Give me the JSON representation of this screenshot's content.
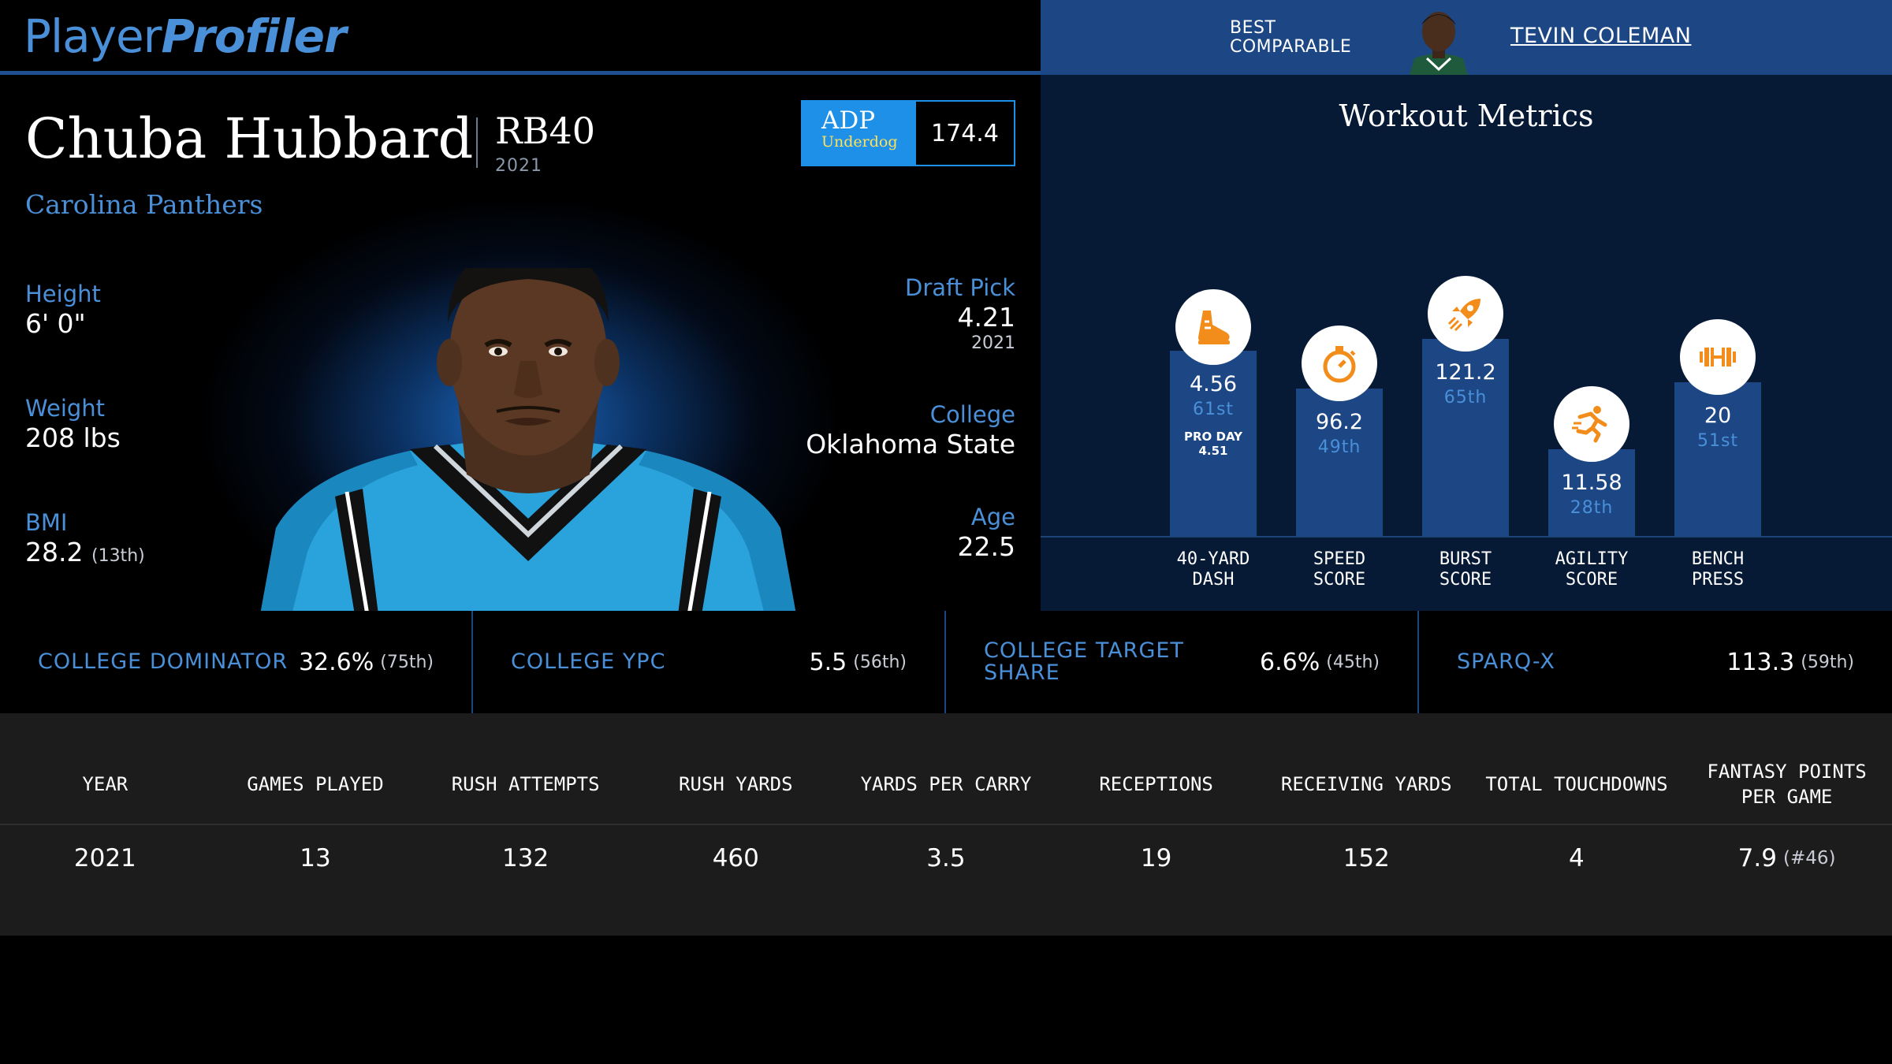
{
  "header": {
    "logo_part1": "Player",
    "logo_part2": "Profiler",
    "best_comparable_label": "BEST\nCOMPARABLE",
    "best_comparable_name": "TEVIN COLEMAN"
  },
  "player": {
    "name": "Chuba Hubbard",
    "position": "RB40",
    "year": "2021",
    "team": "Carolina Panthers",
    "adp": {
      "label": "ADP",
      "source": "Underdog",
      "value": "174.4"
    },
    "height": {
      "label": "Height",
      "value": "6' 0\""
    },
    "weight": {
      "label": "Weight",
      "value": "208 lbs"
    },
    "bmi": {
      "label": "BMI",
      "value": "28.2",
      "rank": "(13th)"
    },
    "draft_pick": {
      "label": "Draft Pick",
      "value": "4.21",
      "year": "2021"
    },
    "college": {
      "label": "College",
      "value": "Oklahoma State"
    },
    "age": {
      "label": "Age",
      "value": "22.5"
    }
  },
  "workout": {
    "title": "Workout Metrics",
    "metrics": [
      {
        "label_line1": "40-YARD",
        "label_line2": "DASH",
        "value": "4.56",
        "rank": "61st",
        "note_line1": "PRO DAY",
        "note_line2": "4.51",
        "icon": "running-shoe-icon",
        "percentile": 61
      },
      {
        "label_line1": "SPEED",
        "label_line2": "SCORE",
        "value": "96.2",
        "rank": "49th",
        "icon": "stopwatch-icon",
        "percentile": 49
      },
      {
        "label_line1": "BURST",
        "label_line2": "SCORE",
        "value": "121.2",
        "rank": "65th",
        "icon": "rocket-icon",
        "percentile": 65
      },
      {
        "label_line1": "AGILITY",
        "label_line2": "SCORE",
        "value": "11.58",
        "rank": "28th",
        "icon": "runner-icon",
        "percentile": 28
      },
      {
        "label_line1": "BENCH",
        "label_line2": "PRESS",
        "value": "20",
        "rank": "51st",
        "icon": "dumbbell-icon",
        "percentile": 51
      }
    ]
  },
  "metrics_strip": [
    {
      "label": "COLLEGE DOMINATOR",
      "value": "32.6%",
      "rank": "(75th)"
    },
    {
      "label": "COLLEGE YPC",
      "value": "5.5",
      "rank": "(56th)"
    },
    {
      "label": "COLLEGE TARGET SHARE",
      "value": "6.6%",
      "rank": "(45th)"
    },
    {
      "label": "SPARQ-X",
      "value": "113.3",
      "rank": "(59th)"
    }
  ],
  "stats_table": {
    "headers": [
      "YEAR",
      "GAMES PLAYED",
      "RUSH ATTEMPTS",
      "RUSH YARDS",
      "YARDS PER CARRY",
      "RECEPTIONS",
      "RECEIVING YARDS",
      "TOTAL TOUCHDOWNS",
      "FANTASY POINTS PER GAME"
    ],
    "rows": [
      {
        "values": [
          "2021",
          "13",
          "132",
          "460",
          "3.5",
          "19",
          "152",
          "4",
          "7.9"
        ],
        "fp_rank": "(#46)"
      }
    ]
  },
  "colors": {
    "accent_blue": "#4a90d9",
    "header_blue": "#1c4684",
    "adp_blue": "#1e90e8",
    "icon_orange": "#f28c1a",
    "panel_navy": "#061a35"
  }
}
